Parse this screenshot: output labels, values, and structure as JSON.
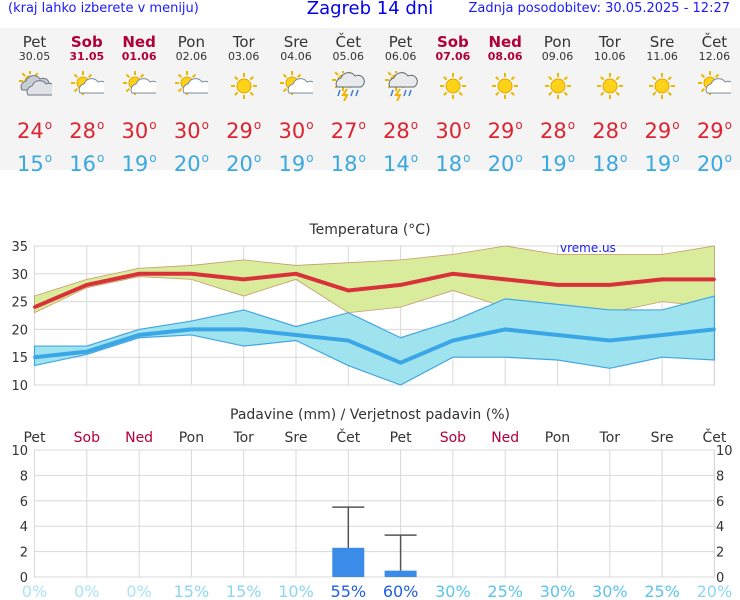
{
  "header": {
    "menu_hint": "(kraj lahko izberete v meniju)",
    "title": "Zagreb 14 dni",
    "updated": "Zadnja posodobitev: 30.05.2025 - 12:27"
  },
  "forecast": [
    {
      "day": "Pet",
      "date": "30.05",
      "weekend": false,
      "icon": "cloudy-icon",
      "high": "24",
      "low": "15"
    },
    {
      "day": "Sob",
      "date": "31.05",
      "weekend": true,
      "icon": "partly-sunny-icon",
      "high": "28",
      "low": "16"
    },
    {
      "day": "Ned",
      "date": "01.06",
      "weekend": true,
      "icon": "partly-sunny-icon",
      "high": "30",
      "low": "19"
    },
    {
      "day": "Pon",
      "date": "02.06",
      "weekend": false,
      "icon": "partly-sunny-icon",
      "high": "30",
      "low": "20"
    },
    {
      "day": "Tor",
      "date": "03.06",
      "weekend": false,
      "icon": "sunny-icon",
      "high": "29",
      "low": "20"
    },
    {
      "day": "Sre",
      "date": "04.06",
      "weekend": false,
      "icon": "partly-sunny-icon",
      "high": "30",
      "low": "19"
    },
    {
      "day": "Čet",
      "date": "05.06",
      "weekend": false,
      "icon": "thunderstorm-icon",
      "high": "27",
      "low": "18"
    },
    {
      "day": "Pet",
      "date": "06.06",
      "weekend": false,
      "icon": "thunderstorm-icon",
      "high": "28",
      "low": "14"
    },
    {
      "day": "Sob",
      "date": "07.06",
      "weekend": true,
      "icon": "sunny-icon",
      "high": "30",
      "low": "18"
    },
    {
      "day": "Ned",
      "date": "08.06",
      "weekend": true,
      "icon": "sunny-icon",
      "high": "29",
      "low": "20"
    },
    {
      "day": "Pon",
      "date": "09.06",
      "weekend": false,
      "icon": "sunny-icon",
      "high": "28",
      "low": "19"
    },
    {
      "day": "Tor",
      "date": "10.06",
      "weekend": false,
      "icon": "sunny-icon",
      "high": "28",
      "low": "18"
    },
    {
      "day": "Sre",
      "date": "11.06",
      "weekend": false,
      "icon": "sunny-icon",
      "high": "29",
      "low": "19"
    },
    {
      "day": "Čet",
      "date": "12.06",
      "weekend": false,
      "icon": "partly-sunny-icon",
      "high": "29",
      "low": "20"
    }
  ],
  "colors": {
    "high": "#dd2430",
    "low": "#3aa8e0",
    "weekend": "#b0003a",
    "precip_bar": "#3b8be8",
    "high_band": "#d9ec9c",
    "low_band": "#9fe3ef"
  },
  "chart_data": [
    {
      "type": "line",
      "title": "Temperatura (°C)",
      "watermark": "vreme.us",
      "categories": [
        "Pet",
        "Sob",
        "Ned",
        "Pon",
        "Tor",
        "Sre",
        "Čet",
        "Pet",
        "Sob",
        "Ned",
        "Pon",
        "Tor",
        "Sre",
        "Čet"
      ],
      "ylim": [
        10,
        35
      ],
      "yticks": [
        10,
        15,
        20,
        25,
        30,
        35
      ],
      "grid": true,
      "series": [
        {
          "name": "",
          "role": "high",
          "values": [
            24,
            28,
            30,
            30,
            29,
            30,
            27,
            28,
            30,
            29,
            28,
            28,
            29,
            29
          ],
          "band_min": [
            23,
            27.5,
            29.5,
            29,
            26,
            29,
            23,
            24,
            27,
            24,
            23.5,
            23,
            25,
            24
          ],
          "band_max": [
            26,
            29,
            31,
            31.5,
            32.5,
            31.5,
            32,
            32.5,
            33.5,
            35,
            33.5,
            33.5,
            33.5,
            35
          ]
        },
        {
          "name": "",
          "role": "low",
          "values": [
            15,
            16,
            19,
            20,
            20,
            19,
            18,
            14,
            18,
            20,
            19,
            18,
            19,
            20
          ],
          "band_min": [
            13.5,
            15.5,
            18.5,
            19,
            17,
            18,
            13.5,
            10,
            15,
            15,
            14.5,
            13,
            15,
            14.5
          ],
          "band_max": [
            17,
            17,
            20,
            21.5,
            23.5,
            20.5,
            23,
            18.5,
            21.5,
            25.5,
            24.5,
            23.5,
            23.5,
            26
          ]
        }
      ]
    },
    {
      "type": "bar",
      "title": "Padavine (mm) / Verjetnost padavin (%)",
      "categories": [
        "Pet",
        "Sob",
        "Ned",
        "Pon",
        "Tor",
        "Sre",
        "Čet",
        "Pet",
        "Sob",
        "Ned",
        "Pon",
        "Tor",
        "Sre",
        "Čet"
      ],
      "weekend": [
        false,
        true,
        true,
        false,
        false,
        false,
        false,
        false,
        true,
        true,
        false,
        false,
        false,
        false
      ],
      "ylim": [
        0,
        10
      ],
      "yticks": [
        0,
        2,
        4,
        6,
        8,
        10
      ],
      "precipitation_mm": [
        0,
        0,
        0,
        0,
        0,
        0,
        2.3,
        0.5,
        0,
        0,
        0,
        0,
        0,
        0
      ],
      "precipitation_max_mm": [
        0,
        0,
        0,
        0,
        0,
        0,
        5.5,
        3.3,
        0,
        0,
        0,
        0,
        0,
        0
      ],
      "probability_labels": [
        "0%",
        "0%",
        "0%",
        "15%",
        "15%",
        "10%",
        "55%",
        "60%",
        "30%",
        "25%",
        "30%",
        "30%",
        "25%",
        "20%"
      ],
      "probability_colors": [
        "#a9e4f5",
        "#a9e4f5",
        "#a9e4f5",
        "#8cd6f0",
        "#8cd6f0",
        "#8cd6f0",
        "#1f5fe0",
        "#1f5fe0",
        "#5cc4ec",
        "#5cc4ec",
        "#5cc4ec",
        "#5cc4ec",
        "#5cc4ec",
        "#8cd6f0"
      ]
    }
  ]
}
